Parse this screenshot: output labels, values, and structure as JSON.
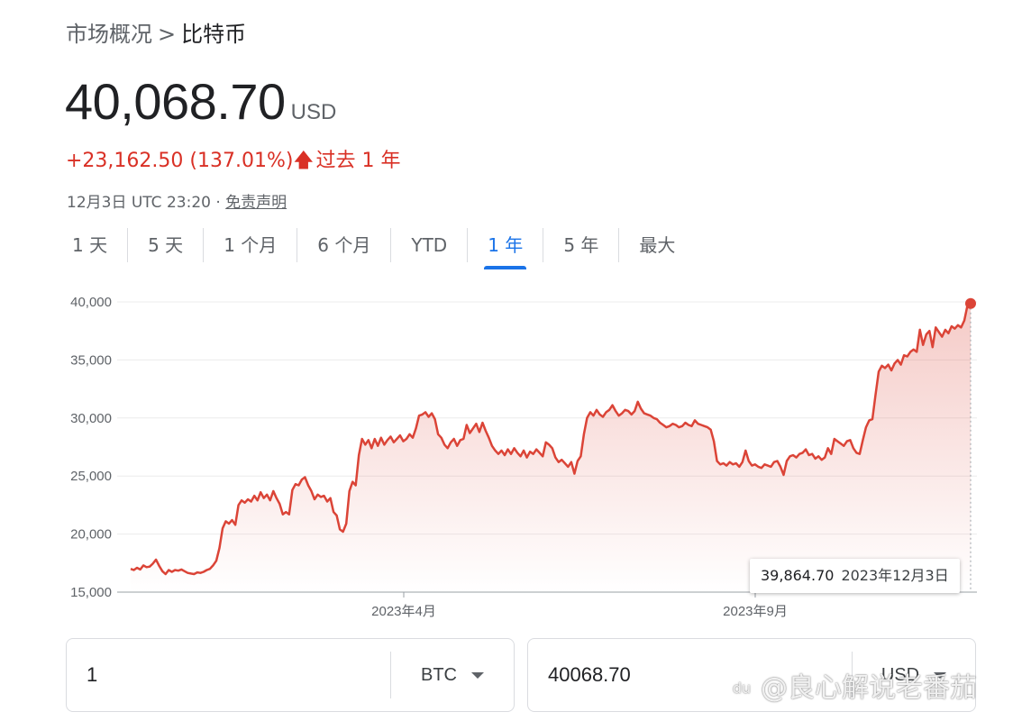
{
  "breadcrumb": {
    "parent": "市场概况",
    "separator": ">",
    "current": "比特币"
  },
  "quote": {
    "price": "40,068.70",
    "currency": "USD"
  },
  "change": {
    "amount": "+23,162.50",
    "percent": "(137.01%)",
    "arrow": "🡅",
    "period": "过去 1 年"
  },
  "meta": {
    "timestamp": "12月3日 UTC 23:20",
    "separator": "·",
    "disclaimer": "免责声明"
  },
  "tabs": [
    {
      "label": "1 天",
      "active": false
    },
    {
      "label": "5 天",
      "active": false
    },
    {
      "label": "1 个月",
      "active": false
    },
    {
      "label": "6 个月",
      "active": false
    },
    {
      "label": "YTD",
      "active": false
    },
    {
      "label": "1 年",
      "active": true
    },
    {
      "label": "5 年",
      "active": false
    },
    {
      "label": "最大",
      "active": false
    }
  ],
  "tooltip": {
    "value": "39,864.70",
    "date": "2023年12月3日"
  },
  "converter": {
    "left": {
      "value": "1",
      "unit": "BTC"
    },
    "right": {
      "value": "40068.70",
      "unit": "USD"
    }
  },
  "watermark": {
    "logo": "du",
    "text": "@良心解说老番茄"
  },
  "colors": {
    "line": "#db4437",
    "fill": "#fce8e6",
    "accent": "#1a73e8",
    "negative_text": "#d93025"
  },
  "chart_data": {
    "type": "area",
    "x_labels": [
      "2023年4月",
      "2023年9月"
    ],
    "y_ticks": [
      15000,
      20000,
      25000,
      30000,
      35000,
      40000
    ],
    "y_tick_labels": [
      "15,000",
      "20,000",
      "25,000",
      "30,000",
      "35,000",
      "40,000"
    ],
    "ylim": [
      15000,
      40000
    ],
    "grid": true,
    "series": [
      {
        "values": [
          17000,
          16900,
          17100,
          16950,
          17300,
          17150,
          17200,
          17450,
          17800,
          17250,
          16800,
          16550,
          16900,
          16750,
          16900,
          16850,
          16950,
          16800,
          16650,
          16600,
          16550,
          16700,
          16650,
          16750,
          16900,
          17000,
          17300,
          17700,
          18800,
          20500,
          21100,
          20900,
          21200,
          20800,
          22500,
          22900,
          22700,
          23000,
          22800,
          23300,
          22900,
          23600,
          23100,
          23400,
          22900,
          23700,
          23100,
          22600,
          21700,
          21900,
          21700,
          23800,
          24300,
          24200,
          24700,
          24900,
          24200,
          23700,
          23000,
          23400,
          23200,
          23300,
          22800,
          23100,
          21900,
          21600,
          20400,
          20200,
          20900,
          23700,
          24500,
          24200,
          26800,
          28200,
          27700,
          28100,
          27400,
          28200,
          27600,
          28300,
          27700,
          28100,
          28400,
          27900,
          28200,
          28500,
          28000,
          28200,
          28600,
          28300,
          29100,
          30200,
          30300,
          30500,
          30100,
          30400,
          29900,
          28600,
          28300,
          27700,
          27400,
          27900,
          28200,
          27600,
          28100,
          28200,
          29400,
          28700,
          29100,
          29500,
          28800,
          29600,
          28900,
          28300,
          27600,
          27200,
          26900,
          27200,
          26800,
          27300,
          26900,
          27400,
          27000,
          26700,
          27200,
          26600,
          27100,
          26900,
          27300,
          27000,
          26700,
          27900,
          27700,
          27400,
          26600,
          26200,
          26400,
          26100,
          25800,
          26200,
          25200,
          26300,
          26700,
          28600,
          30000,
          30500,
          30200,
          30700,
          30300,
          30100,
          30500,
          30700,
          31100,
          30600,
          30200,
          30400,
          30700,
          30600,
          30300,
          30600,
          31400,
          30800,
          30400,
          30300,
          30200,
          30000,
          29900,
          29600,
          29400,
          29200,
          29300,
          29500,
          29400,
          29200,
          29300,
          29600,
          29400,
          29300,
          29800,
          29500,
          29400,
          29300,
          29200,
          29000,
          28000,
          26300,
          26000,
          26100,
          25900,
          26200,
          26000,
          26100,
          25800,
          26200,
          27200,
          26300,
          25900,
          26000,
          25800,
          25700,
          26000,
          25900,
          25800,
          26200,
          26300,
          25800,
          25100,
          26300,
          26700,
          26800,
          26600,
          26900,
          27000,
          27300,
          26800,
          26900,
          26500,
          26700,
          26400,
          26600,
          27400,
          26900,
          28200,
          28000,
          27800,
          27600,
          28000,
          28100,
          27400,
          27000,
          26900,
          28100,
          29200,
          29800,
          29900,
          32000,
          34000,
          34500,
          34300,
          34600,
          34100,
          34700,
          35000,
          34600,
          35400,
          35300,
          35700,
          35900,
          35700,
          37600,
          36300,
          37200,
          37500,
          36100,
          37800,
          37400,
          37000,
          37600,
          37300,
          37900,
          37700,
          38000,
          37800,
          38400,
          39700,
          39864.7
        ]
      }
    ]
  }
}
